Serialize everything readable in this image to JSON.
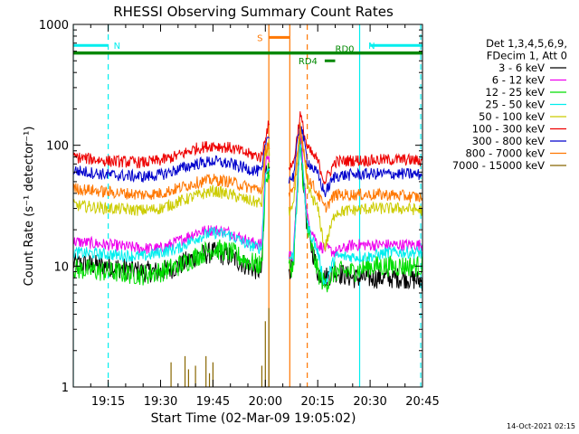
{
  "chart_data": {
    "type": "line",
    "title": "RHESSI Observing Summary Count Rates",
    "xlabel": "Start Time (02-Mar-09 19:05:02)",
    "ylabel": "Count Rate (s⁻¹ detector⁻¹)",
    "y_scale": "log",
    "ylim": [
      1,
      1000
    ],
    "xlim_minutes_after_start": [
      0,
      100
    ],
    "x_tick_labels": [
      "19:15",
      "19:30",
      "19:45",
      "20:00",
      "20:15",
      "20:30",
      "20:45"
    ],
    "x_tick_minutes": [
      10,
      25,
      40,
      55,
      70,
      85,
      100
    ],
    "y_tick_labels": [
      "1",
      "10",
      "100",
      "1000"
    ],
    "y_tick_values": [
      1,
      10,
      100,
      1000
    ],
    "legend_header": [
      "Det 1,3,4,5,6,9,",
      "FDecim 1, Att 0"
    ],
    "legend_position": "right",
    "timestamp": "14-Oct-2021 02:15",
    "series": [
      {
        "name": "3 - 6 keV",
        "color": "#000000",
        "points": [
          [
            0,
            10.5
          ],
          [
            10,
            10
          ],
          [
            20,
            9
          ],
          [
            25,
            9
          ],
          [
            30,
            10
          ],
          [
            35,
            12
          ],
          [
            40,
            13
          ],
          [
            45,
            12
          ],
          [
            50,
            10
          ],
          [
            54,
            9
          ],
          [
            55,
            60
          ],
          [
            56,
            70
          ],
          [
            57,
            20
          ],
          [
            58,
            8
          ],
          [
            63,
            10
          ],
          [
            65,
            120
          ],
          [
            67,
            20
          ],
          [
            70,
            9
          ],
          [
            72,
            8
          ],
          [
            75,
            9
          ],
          [
            80,
            8
          ],
          [
            85,
            8
          ],
          [
            90,
            8
          ],
          [
            95,
            8
          ],
          [
            100,
            7.5
          ]
        ]
      },
      {
        "name": "6 - 12 keV",
        "color": "#ee00ee",
        "points": [
          [
            0,
            16
          ],
          [
            10,
            15
          ],
          [
            20,
            14
          ],
          [
            25,
            14
          ],
          [
            30,
            16
          ],
          [
            35,
            19
          ],
          [
            40,
            20
          ],
          [
            45,
            19
          ],
          [
            50,
            16
          ],
          [
            54,
            15
          ],
          [
            55,
            70
          ],
          [
            56,
            90
          ],
          [
            57,
            25
          ],
          [
            58,
            12
          ],
          [
            63,
            12
          ],
          [
            65,
            130
          ],
          [
            67,
            25
          ],
          [
            70,
            15
          ],
          [
            72,
            14
          ],
          [
            75,
            13
          ],
          [
            80,
            15
          ],
          [
            85,
            15
          ],
          [
            90,
            15
          ],
          [
            95,
            15
          ],
          [
            100,
            15
          ]
        ]
      },
      {
        "name": "12 - 25 keV",
        "color": "#00dd00",
        "points": [
          [
            0,
            9.5
          ],
          [
            10,
            9
          ],
          [
            20,
            8.5
          ],
          [
            25,
            9
          ],
          [
            30,
            10
          ],
          [
            35,
            12
          ],
          [
            40,
            14
          ],
          [
            45,
            13
          ],
          [
            50,
            11
          ],
          [
            54,
            10
          ],
          [
            55,
            50
          ],
          [
            56,
            60
          ],
          [
            57,
            20
          ],
          [
            58,
            9
          ],
          [
            63,
            10
          ],
          [
            65,
            100
          ],
          [
            67,
            20
          ],
          [
            70,
            9
          ],
          [
            72,
            7
          ],
          [
            75,
            9
          ],
          [
            80,
            9
          ],
          [
            85,
            10
          ],
          [
            90,
            10
          ],
          [
            95,
            10
          ],
          [
            100,
            10
          ]
        ]
      },
      {
        "name": "25 - 50 keV",
        "color": "#00eeee",
        "points": [
          [
            0,
            13
          ],
          [
            10,
            12.5
          ],
          [
            20,
            12
          ],
          [
            25,
            13
          ],
          [
            30,
            14
          ],
          [
            35,
            17
          ],
          [
            40,
            19
          ],
          [
            45,
            18
          ],
          [
            50,
            15
          ],
          [
            54,
            14
          ],
          [
            55,
            55
          ],
          [
            56,
            70
          ],
          [
            57,
            25
          ],
          [
            58,
            11
          ],
          [
            63,
            12
          ],
          [
            65,
            110
          ],
          [
            67,
            22
          ],
          [
            70,
            13
          ],
          [
            72,
            7
          ],
          [
            75,
            12
          ],
          [
            80,
            12
          ],
          [
            85,
            12
          ],
          [
            90,
            13
          ],
          [
            95,
            13
          ],
          [
            100,
            13
          ]
        ]
      },
      {
        "name": "50 - 100 keV",
        "color": "#cccc00",
        "points": [
          [
            0,
            32
          ],
          [
            10,
            30
          ],
          [
            20,
            29
          ],
          [
            25,
            30
          ],
          [
            30,
            34
          ],
          [
            35,
            38
          ],
          [
            40,
            42
          ],
          [
            45,
            39
          ],
          [
            50,
            35
          ],
          [
            54,
            33
          ],
          [
            55,
            80
          ],
          [
            56,
            100
          ],
          [
            57,
            40
          ],
          [
            58,
            25
          ],
          [
            63,
            30
          ],
          [
            65,
            140
          ],
          [
            67,
            45
          ],
          [
            70,
            30
          ],
          [
            72,
            14
          ],
          [
            75,
            28
          ],
          [
            80,
            29
          ],
          [
            85,
            30
          ],
          [
            90,
            30
          ],
          [
            95,
            30
          ],
          [
            100,
            29
          ]
        ]
      },
      {
        "name": "100 - 300 keV",
        "color": "#ee0000",
        "points": [
          [
            0,
            80
          ],
          [
            10,
            74
          ],
          [
            20,
            72
          ],
          [
            25,
            75
          ],
          [
            30,
            82
          ],
          [
            35,
            94
          ],
          [
            40,
            100
          ],
          [
            45,
            95
          ],
          [
            50,
            85
          ],
          [
            54,
            80
          ],
          [
            55,
            120
          ],
          [
            56,
            150
          ],
          [
            57,
            80
          ],
          [
            58,
            60
          ],
          [
            63,
            70
          ],
          [
            65,
            180
          ],
          [
            67,
            95
          ],
          [
            70,
            74
          ],
          [
            72,
            50
          ],
          [
            75,
            73
          ],
          [
            80,
            75
          ],
          [
            85,
            75
          ],
          [
            90,
            76
          ],
          [
            95,
            76
          ],
          [
            100,
            74
          ]
        ]
      },
      {
        "name": "300 - 800 keV",
        "color": "#0000cc",
        "points": [
          [
            0,
            62
          ],
          [
            10,
            57
          ],
          [
            20,
            55
          ],
          [
            25,
            57
          ],
          [
            30,
            63
          ],
          [
            35,
            70
          ],
          [
            40,
            74
          ],
          [
            45,
            70
          ],
          [
            50,
            64
          ],
          [
            54,
            60
          ],
          [
            55,
            100
          ],
          [
            56,
            130
          ],
          [
            57,
            60
          ],
          [
            58,
            45
          ],
          [
            63,
            55
          ],
          [
            65,
            160
          ],
          [
            67,
            75
          ],
          [
            70,
            57
          ],
          [
            72,
            40
          ],
          [
            75,
            56
          ],
          [
            80,
            57
          ],
          [
            85,
            58
          ],
          [
            90,
            58
          ],
          [
            95,
            58
          ],
          [
            100,
            57
          ]
        ]
      },
      {
        "name": "800 - 7000 keV",
        "color": "#ff7700",
        "points": [
          [
            0,
            44
          ],
          [
            10,
            41
          ],
          [
            20,
            39
          ],
          [
            25,
            40
          ],
          [
            30,
            44
          ],
          [
            35,
            49
          ],
          [
            40,
            52
          ],
          [
            45,
            50
          ],
          [
            50,
            45
          ],
          [
            54,
            43
          ],
          [
            55,
            90
          ],
          [
            56,
            110
          ],
          [
            57,
            50
          ],
          [
            58,
            35
          ],
          [
            63,
            40
          ],
          [
            65,
            150
          ],
          [
            67,
            55
          ],
          [
            70,
            40
          ],
          [
            72,
            30
          ],
          [
            75,
            39
          ],
          [
            80,
            39
          ],
          [
            85,
            39
          ],
          [
            90,
            39
          ],
          [
            95,
            38
          ],
          [
            100,
            37
          ]
        ]
      },
      {
        "name": "7000 - 15000 keV",
        "color": "#886600",
        "spikes": [
          [
            28,
            1.6
          ],
          [
            32,
            1.8
          ],
          [
            33,
            1.4
          ],
          [
            35,
            1.5
          ],
          [
            38,
            1.8
          ],
          [
            39,
            1.3
          ],
          [
            40,
            1.6
          ],
          [
            54,
            1.5
          ],
          [
            55,
            3.5
          ],
          [
            56,
            4.5
          ]
        ]
      }
    ],
    "annotations": [
      {
        "label": "N",
        "color": "#00eeee",
        "x_range": [
          0,
          10
        ],
        "y": 670
      },
      {
        "label": "N",
        "color": "#00eeee",
        "x_range": [
          85,
          100
        ],
        "y": 670
      },
      {
        "label": "S",
        "color": "#ff7700",
        "x_range": [
          56,
          62
        ],
        "y": 780
      },
      {
        "label": "RD0",
        "color": "#008800",
        "x_range": [
          0,
          100
        ],
        "y": 580
      },
      {
        "label": "RD4",
        "color": "#008800",
        "x_range": [
          72,
          75
        ],
        "y": 500
      }
    ],
    "vertical_lines": [
      {
        "x": 0,
        "color": "#00eeee",
        "style": "solid"
      },
      {
        "x": 10,
        "color": "#00eeee",
        "style": "dashed"
      },
      {
        "x": 56,
        "color": "#ff7700",
        "style": "solid"
      },
      {
        "x": 62,
        "color": "#ff7700",
        "style": "solid"
      },
      {
        "x": 67,
        "color": "#ff7700",
        "style": "dashed"
      },
      {
        "x": 82,
        "color": "#00eeee",
        "style": "solid"
      },
      {
        "x": 99.5,
        "color": "#00eeee",
        "style": "dashed"
      }
    ]
  }
}
